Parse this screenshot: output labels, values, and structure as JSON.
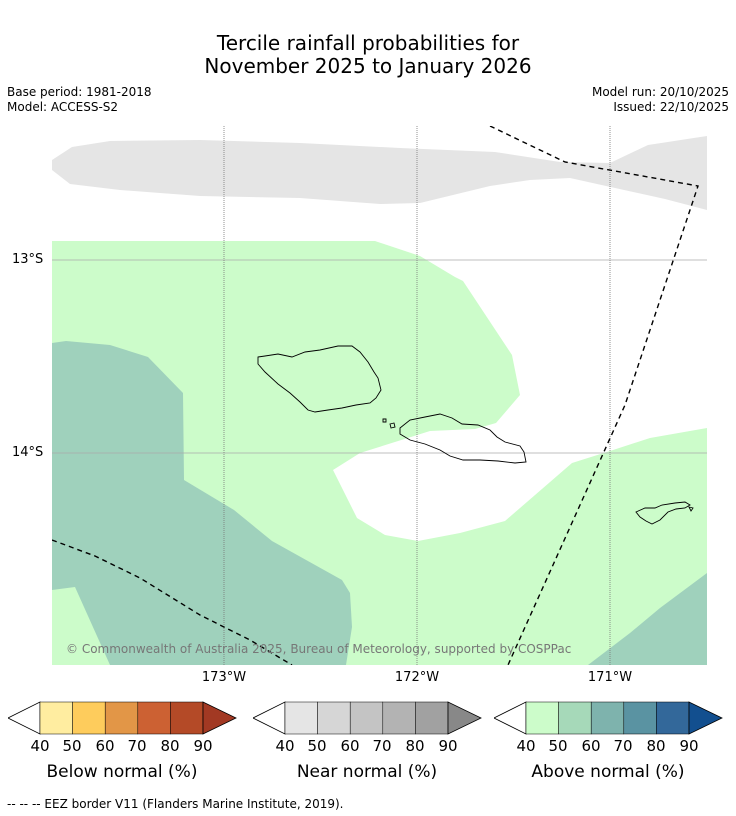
{
  "title": {
    "line1": "Tercile rainfall probabilities for",
    "line2": "November 2025 to January 2026"
  },
  "meta": {
    "base_period": "Base period: 1981-2018",
    "model": "Model: ACCESS-S2",
    "model_run": "Model run: 20/10/2025",
    "issued": "Issued: 22/10/2025"
  },
  "map": {
    "lat_labels": [
      "13°S",
      "14°S"
    ],
    "lon_labels": [
      "173°W",
      "172°W",
      "171°W"
    ],
    "copyright": "© Commonwealth of Australia 2025, Bureau of Meteorology, supported by COSPPac",
    "regions": [
      {
        "name": "near-normal-40-50",
        "category": "near",
        "color": "#e5e5e5"
      },
      {
        "name": "above-normal-40-50",
        "category": "above",
        "color": "#ccfcca"
      },
      {
        "name": "above-normal-50-60",
        "category": "above",
        "color": "#9fd1bc"
      }
    ],
    "islands": [
      "Savaii",
      "Upolu",
      "Tutuila"
    ]
  },
  "colorbars": [
    {
      "name": "below",
      "label": "Below normal (%)",
      "ticks": [
        "40",
        "50",
        "60",
        "70",
        "80",
        "90"
      ],
      "low_color": "#ffffff",
      "colors": [
        "#ffeda0",
        "#fecc5c",
        "#e29647",
        "#cc6133",
        "#b44a27"
      ],
      "high_color": "#a23923"
    },
    {
      "name": "near",
      "label": "Near normal (%)",
      "ticks": [
        "40",
        "50",
        "60",
        "70",
        "80",
        "90"
      ],
      "low_color": "#ffffff",
      "colors": [
        "#e5e5e5",
        "#d6d6d6",
        "#c4c4c4",
        "#b3b3b3",
        "#a1a1a1"
      ],
      "high_color": "#888888"
    },
    {
      "name": "above",
      "label": "Above normal (%)",
      "ticks": [
        "40",
        "50",
        "60",
        "70",
        "80",
        "90"
      ],
      "low_color": "#ffffff",
      "colors": [
        "#ccfcca",
        "#a6d9b9",
        "#7eb3ad",
        "#5a93a2",
        "#33689a"
      ],
      "high_color": "#124f8f"
    }
  ],
  "footer": "--  --  -- EEZ border V11 (Flanders Marine Institute, 2019)."
}
